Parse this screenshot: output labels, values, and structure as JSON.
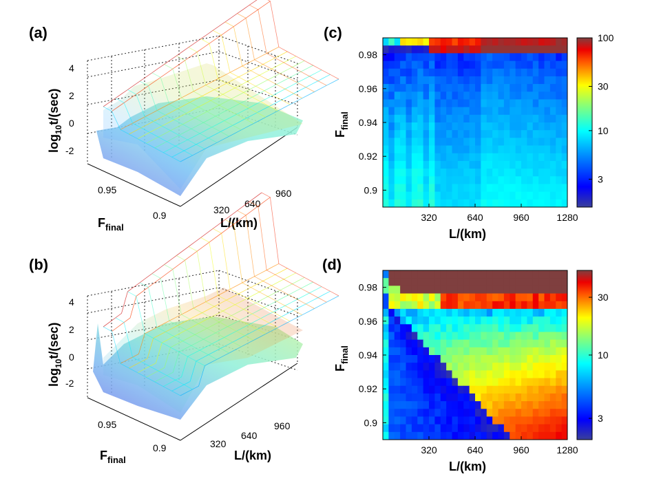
{
  "panels": [
    {
      "id": "a",
      "label": "(a)",
      "type": "surface3d",
      "zlabel_main": "log",
      "zlabel_sub": "10",
      "zlabel_tail": "t/(sec)",
      "z_ticks": [
        "4",
        "2",
        "0",
        "-2"
      ],
      "f_label_main": "F",
      "f_label_sub": "final",
      "f_ticks": [
        "0.95",
        "0.9"
      ],
      "l_label": "L/(km)",
      "l_ticks": [
        "320",
        "640",
        "960"
      ]
    },
    {
      "id": "b",
      "label": "(b)",
      "type": "surface3d",
      "zlabel_main": "log",
      "zlabel_sub": "10",
      "zlabel_tail": "t/(sec)",
      "z_ticks": [
        "4",
        "2",
        "0",
        "-2"
      ],
      "f_label_main": "F",
      "f_label_sub": "final",
      "f_ticks": [
        "0.95",
        "0.9"
      ],
      "l_label": "L/(km)",
      "l_ticks": [
        "320",
        "640",
        "960"
      ]
    }
  ],
  "chart_data": [
    {
      "id": "c",
      "label": "(c)",
      "type": "heatmap",
      "xlabel": "L/(km)",
      "ylabel_main": "F",
      "ylabel_sub": "final",
      "x_range": [
        0,
        1280
      ],
      "y_range": [
        0.89,
        0.99
      ],
      "x_ticks": [
        "320",
        "640",
        "960",
        "1280"
      ],
      "y_ticks": [
        "0.9",
        "0.92",
        "0.94",
        "0.96",
        "0.98"
      ],
      "colorbar_ticks": [
        "100",
        "30",
        "10",
        "3"
      ],
      "colorbar_range": [
        1.5,
        100
      ],
      "colorscale": "jet-log"
    },
    {
      "id": "d",
      "label": "(d)",
      "type": "heatmap",
      "xlabel": "L/(km)",
      "ylabel_main": "F",
      "ylabel_sub": "final",
      "x_range": [
        0,
        1280
      ],
      "y_range": [
        0.89,
        0.99
      ],
      "x_ticks": [
        "320",
        "640",
        "960",
        "1280"
      ],
      "y_ticks": [
        "0.9",
        "0.92",
        "0.94",
        "0.96",
        "0.98"
      ],
      "colorbar_ticks": [
        "30",
        "10",
        "3"
      ],
      "colorbar_range": [
        2,
        50
      ],
      "colorscale": "jet-log"
    }
  ]
}
